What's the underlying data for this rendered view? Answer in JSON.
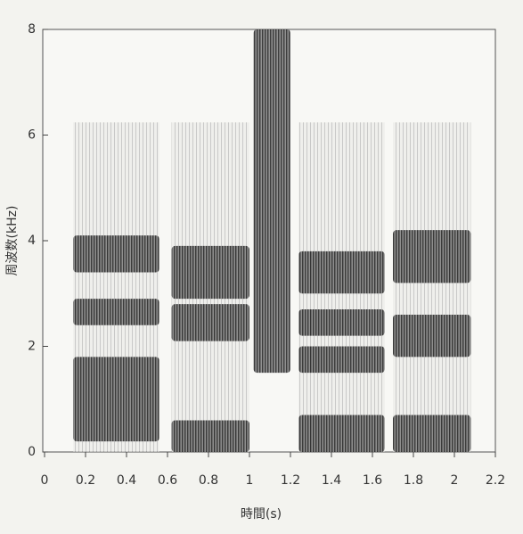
{
  "chart_data": {
    "type": "spectrogram",
    "xlabel": "時間(s)",
    "ylabel": "周波数(kHz)",
    "xlim": [
      0,
      2.2
    ],
    "ylim": [
      0,
      8
    ],
    "xticks": [
      0,
      0.2,
      0.4,
      0.6,
      0.8,
      1.0,
      1.2,
      1.4,
      1.6,
      1.8,
      2.0,
      2.2
    ],
    "yticks": [
      0,
      2,
      4,
      6,
      8
    ],
    "color": "#2a2a2a",
    "segments": [
      {
        "start": 0.14,
        "end": 0.56,
        "bands": [
          [
            0.2,
            1.8
          ],
          [
            2.4,
            2.9
          ],
          [
            3.4,
            4.1
          ]
        ]
      },
      {
        "start": 0.62,
        "end": 1.0,
        "bands": [
          [
            0,
            0.6
          ],
          [
            2.1,
            2.8
          ],
          [
            2.9,
            3.9
          ]
        ]
      },
      {
        "start": 1.02,
        "end": 1.2,
        "bands": [
          [
            1.5,
            8
          ]
        ]
      },
      {
        "start": 1.24,
        "end": 1.66,
        "bands": [
          [
            0,
            0.7
          ],
          [
            1.5,
            2.0
          ],
          [
            2.2,
            2.7
          ],
          [
            3.0,
            3.8
          ]
        ]
      },
      {
        "start": 1.7,
        "end": 2.08,
        "bands": [
          [
            0,
            0.7
          ],
          [
            1.8,
            2.6
          ],
          [
            3.2,
            4.2
          ]
        ]
      }
    ]
  }
}
